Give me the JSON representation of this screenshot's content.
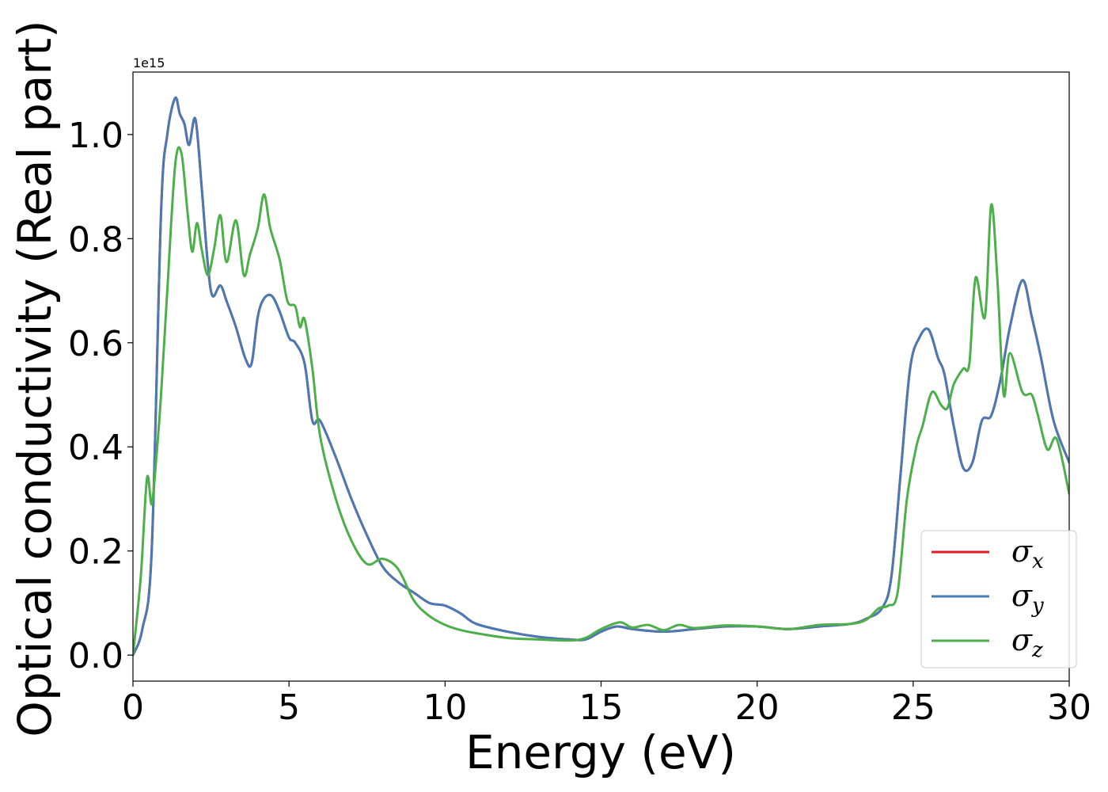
{
  "chart_data": {
    "type": "line",
    "xlabel": "Energy (eV)",
    "ylabel": "Optical conductivity (Real part)",
    "y_offset_label": "1e15",
    "xlim": [
      0,
      30
    ],
    "ylim": [
      -0.05,
      1.12
    ],
    "x_ticks": [
      0,
      5,
      10,
      15,
      20,
      25,
      30
    ],
    "y_ticks": [
      0.0,
      0.2,
      0.4,
      0.6,
      0.8,
      1.0
    ],
    "x_tick_labels": [
      "0",
      "5",
      "10",
      "15",
      "20",
      "25",
      "30"
    ],
    "y_tick_labels": [
      "0.0",
      "0.2",
      "0.4",
      "0.6",
      "0.8",
      "1.0"
    ],
    "grid": false,
    "legend_position": "lower-right",
    "series": [
      {
        "name": "σx",
        "symbol": "σ",
        "subscript": "x",
        "color": "#e41a1c",
        "x": [
          0,
          0.3,
          0.6,
          0.9,
          1.1,
          1.35,
          1.5,
          1.65,
          1.8,
          2.0,
          2.2,
          2.4,
          2.55,
          2.8,
          3.0,
          3.3,
          3.6,
          3.8,
          4.0,
          4.2,
          4.45,
          4.7,
          5.0,
          5.2,
          5.5,
          5.75,
          6.0,
          6.5,
          7.0,
          7.5,
          8.0,
          8.5,
          9.0,
          9.5,
          10.0,
          10.5,
          11.0,
          12.0,
          13.0,
          14.0,
          14.5,
          15.0,
          15.5,
          16.0,
          17.0,
          18.0,
          19.0,
          20.0,
          21.0,
          22.0,
          23.0,
          23.5,
          24.0,
          24.3,
          24.6,
          24.9,
          25.2,
          25.5,
          25.8,
          26.0,
          26.3,
          26.6,
          26.9,
          27.2,
          27.5,
          27.8,
          28.1,
          28.5,
          28.8,
          29.1,
          29.5,
          30.0
        ],
        "y": [
          0.0,
          0.05,
          0.2,
          0.85,
          1.0,
          1.07,
          1.04,
          1.02,
          0.98,
          1.03,
          0.9,
          0.75,
          0.69,
          0.71,
          0.68,
          0.63,
          0.57,
          0.56,
          0.65,
          0.685,
          0.69,
          0.66,
          0.61,
          0.6,
          0.56,
          0.45,
          0.45,
          0.38,
          0.3,
          0.23,
          0.17,
          0.14,
          0.12,
          0.1,
          0.095,
          0.08,
          0.06,
          0.045,
          0.035,
          0.03,
          0.03,
          0.045,
          0.055,
          0.05,
          0.045,
          0.05,
          0.055,
          0.055,
          0.05,
          0.055,
          0.06,
          0.07,
          0.09,
          0.15,
          0.35,
          0.55,
          0.61,
          0.625,
          0.57,
          0.54,
          0.44,
          0.36,
          0.37,
          0.45,
          0.46,
          0.53,
          0.63,
          0.72,
          0.65,
          0.57,
          0.45,
          0.37
        ]
      },
      {
        "name": "σy",
        "symbol": "σ",
        "subscript": "y",
        "color": "#4a7ab5",
        "x": [
          0,
          0.3,
          0.6,
          0.9,
          1.1,
          1.35,
          1.5,
          1.65,
          1.8,
          2.0,
          2.2,
          2.4,
          2.55,
          2.8,
          3.0,
          3.3,
          3.6,
          3.8,
          4.0,
          4.2,
          4.45,
          4.7,
          5.0,
          5.2,
          5.5,
          5.75,
          6.0,
          6.5,
          7.0,
          7.5,
          8.0,
          8.5,
          9.0,
          9.5,
          10.0,
          10.5,
          11.0,
          12.0,
          13.0,
          14.0,
          14.5,
          15.0,
          15.5,
          16.0,
          17.0,
          18.0,
          19.0,
          20.0,
          21.0,
          22.0,
          23.0,
          23.5,
          24.0,
          24.3,
          24.6,
          24.9,
          25.2,
          25.5,
          25.8,
          26.0,
          26.3,
          26.6,
          26.9,
          27.2,
          27.5,
          27.8,
          28.1,
          28.5,
          28.8,
          29.1,
          29.5,
          30.0
        ],
        "y": [
          0.0,
          0.05,
          0.2,
          0.85,
          1.0,
          1.07,
          1.04,
          1.02,
          0.98,
          1.03,
          0.9,
          0.75,
          0.69,
          0.71,
          0.68,
          0.63,
          0.57,
          0.56,
          0.65,
          0.685,
          0.69,
          0.66,
          0.61,
          0.6,
          0.56,
          0.45,
          0.45,
          0.38,
          0.3,
          0.23,
          0.17,
          0.14,
          0.12,
          0.1,
          0.095,
          0.08,
          0.06,
          0.045,
          0.035,
          0.03,
          0.03,
          0.045,
          0.055,
          0.05,
          0.045,
          0.05,
          0.055,
          0.055,
          0.05,
          0.055,
          0.06,
          0.07,
          0.09,
          0.15,
          0.35,
          0.55,
          0.61,
          0.625,
          0.57,
          0.54,
          0.44,
          0.36,
          0.37,
          0.45,
          0.46,
          0.53,
          0.63,
          0.72,
          0.65,
          0.57,
          0.45,
          0.37
        ]
      },
      {
        "name": "σz",
        "symbol": "σ",
        "subscript": "z",
        "color": "#4daf4a",
        "x": [
          0,
          0.25,
          0.45,
          0.6,
          0.75,
          0.9,
          1.1,
          1.35,
          1.55,
          1.75,
          1.9,
          2.05,
          2.2,
          2.4,
          2.6,
          2.8,
          3.0,
          3.3,
          3.55,
          3.75,
          4.0,
          4.2,
          4.4,
          4.7,
          4.95,
          5.2,
          5.35,
          5.5,
          5.75,
          6.0,
          6.5,
          7.0,
          7.5,
          8.0,
          8.5,
          9.0,
          9.5,
          10.0,
          10.5,
          11.0,
          12.0,
          13.0,
          14.0,
          14.5,
          15.0,
          15.6,
          16.0,
          16.5,
          17.0,
          17.5,
          18.0,
          19.0,
          20.0,
          21.0,
          22.0,
          23.0,
          23.5,
          23.9,
          24.2,
          24.5,
          24.8,
          25.1,
          25.3,
          25.6,
          25.9,
          26.1,
          26.3,
          26.6,
          26.8,
          27.0,
          27.3,
          27.5,
          27.7,
          27.9,
          28.1,
          28.5,
          28.8,
          29.0,
          29.3,
          29.6,
          30.0
        ],
        "y": [
          0.0,
          0.15,
          0.34,
          0.29,
          0.38,
          0.5,
          0.7,
          0.94,
          0.965,
          0.85,
          0.775,
          0.83,
          0.78,
          0.73,
          0.78,
          0.845,
          0.755,
          0.835,
          0.73,
          0.77,
          0.82,
          0.885,
          0.82,
          0.76,
          0.68,
          0.67,
          0.63,
          0.645,
          0.55,
          0.42,
          0.3,
          0.22,
          0.175,
          0.185,
          0.165,
          0.105,
          0.075,
          0.058,
          0.048,
          0.042,
          0.033,
          0.03,
          0.028,
          0.033,
          0.05,
          0.063,
          0.053,
          0.058,
          0.048,
          0.058,
          0.052,
          0.057,
          0.055,
          0.05,
          0.058,
          0.06,
          0.068,
          0.09,
          0.095,
          0.12,
          0.3,
          0.4,
          0.44,
          0.505,
          0.48,
          0.475,
          0.52,
          0.55,
          0.56,
          0.725,
          0.65,
          0.865,
          0.72,
          0.5,
          0.58,
          0.505,
          0.5,
          0.46,
          0.395,
          0.415,
          0.31
        ]
      }
    ]
  }
}
